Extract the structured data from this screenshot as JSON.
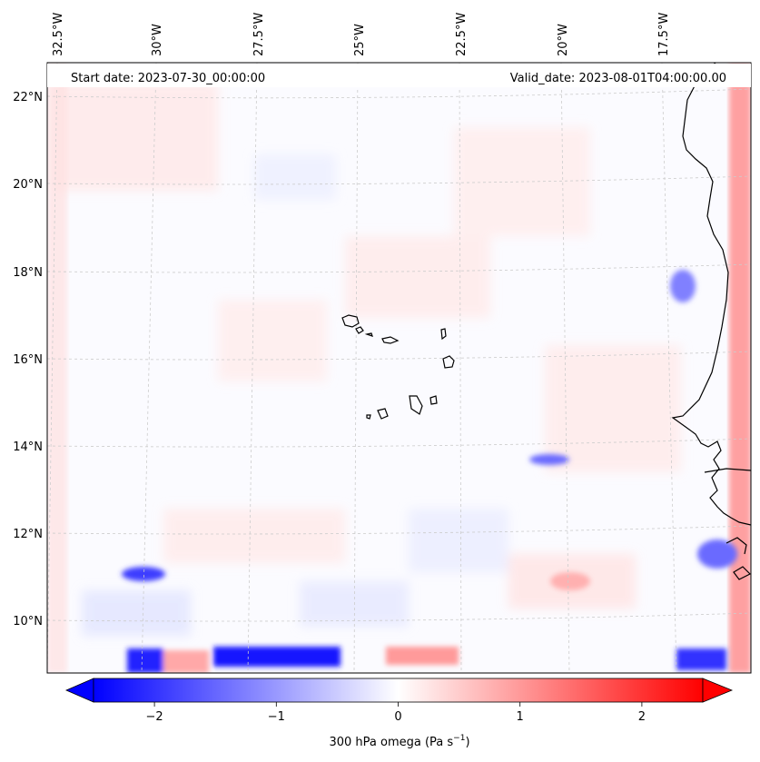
{
  "map": {
    "start_date": "Start date: 2023-07-30_00:00:00",
    "valid_date": "Valid_date: 2023-08-01T04:00:00.00",
    "lon_labels": [
      "32.5°W",
      "30°W",
      "27.5°W",
      "25°W",
      "22.5°W",
      "20°W",
      "17.5°W"
    ],
    "lat_labels": [
      "22°N",
      "20°N",
      "18°N",
      "16°N",
      "14°N",
      "12°N",
      "10°N"
    ],
    "colors": {
      "negative": "#0000ff",
      "neutral": "#ffffff",
      "positive": "#ff0000",
      "coast": "#000000",
      "grid": "#c8c8c8"
    }
  },
  "colorbar": {
    "ticks": [
      "−2",
      "−1",
      "0",
      "1",
      "2"
    ],
    "tick_values": [
      -2,
      -1,
      0,
      1,
      2
    ],
    "range": [
      -2.5,
      2.5
    ],
    "label_main": "300 hPa omega (Pa s",
    "label_sup": "−1",
    "label_end": ")"
  }
}
